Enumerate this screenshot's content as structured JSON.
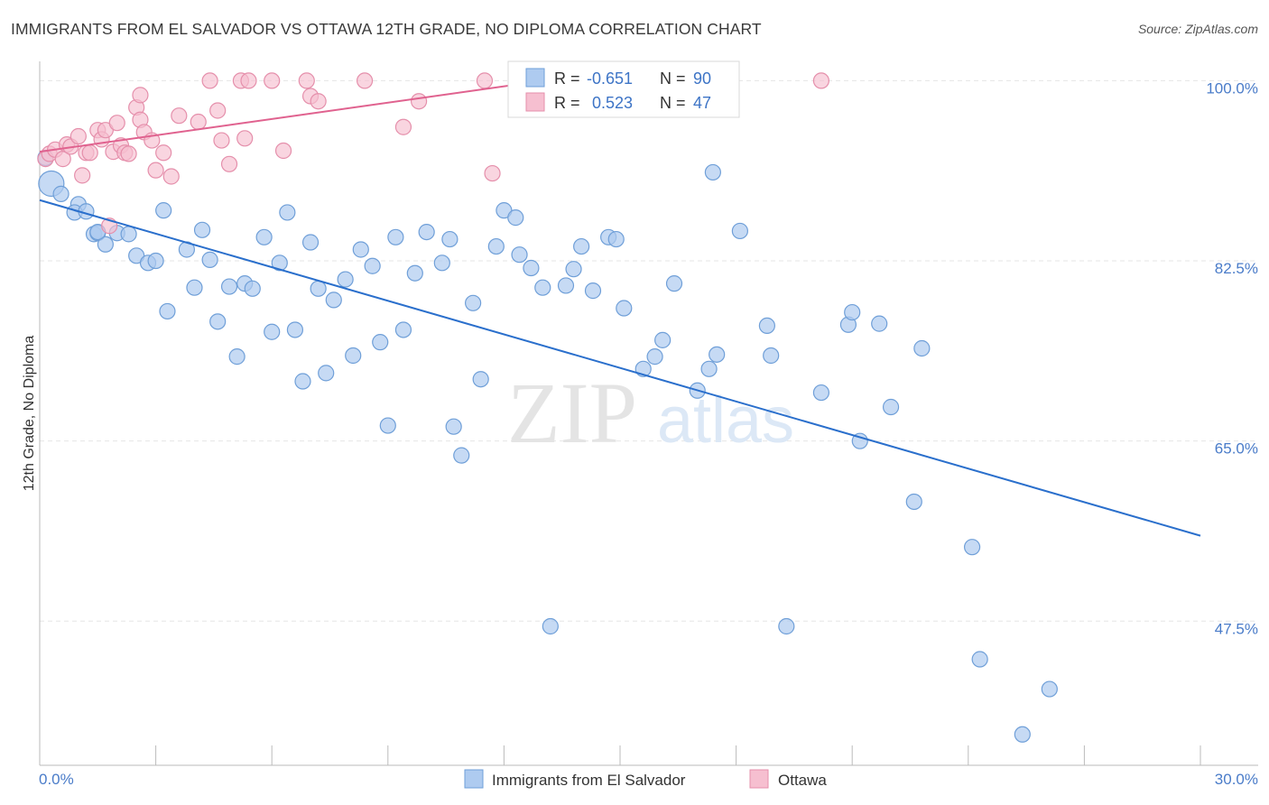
{
  "title": "IMMIGRANTS FROM EL SALVADOR VS OTTAWA 12TH GRADE, NO DIPLOMA CORRELATION CHART",
  "source": "Source: ZipAtlas.com",
  "watermark": {
    "zip": "ZIP",
    "atlas": "atlas"
  },
  "colors": {
    "blue_fill": "#aecbf0",
    "blue_stroke": "#6f9fd8",
    "blue_line": "#2a6fcc",
    "pink_fill": "#f6bfd0",
    "pink_stroke": "#e58fab",
    "pink_line": "#e0628f",
    "tick_text": "#4a7cc9",
    "grid": "#e6e6e6"
  },
  "legend_box": {
    "rows": [
      {
        "series": "blue",
        "r_label": "R =",
        "r_value": "-0.651",
        "n_label": "N =",
        "n_value": "90"
      },
      {
        "series": "pink",
        "r_label": "R =",
        "r_value": "0.523",
        "n_label": "N =",
        "n_value": "47"
      }
    ]
  },
  "bottom_legend": [
    "Immigrants from El Salvador",
    "Ottawa"
  ],
  "chart_data": {
    "type": "scatter",
    "title": "IMMIGRANTS FROM EL SALVADOR VS OTTAWA 12TH GRADE, NO DIPLOMA CORRELATION CHART",
    "xlabel": "",
    "ylabel": "12th Grade, No Diploma",
    "xlim": [
      0,
      30
    ],
    "ylim": [
      33.5,
      101
    ],
    "x_tick_labels": [
      "0.0%",
      "30.0%"
    ],
    "y_ticks": [
      47.5,
      65.0,
      82.5,
      100.0
    ],
    "y_tick_labels": [
      "47.5%",
      "65.0%",
      "82.5%",
      "100.0%"
    ],
    "grid": true,
    "legend_position": "top-center",
    "series": [
      {
        "name": "Immigrants from El Salvador",
        "color": "#aecbf0",
        "r": -0.651,
        "n": 90,
        "trend": {
          "x": [
            0,
            30
          ],
          "y": [
            88.4,
            55.8
          ]
        },
        "points": [
          [
            0.15,
            92.5
          ],
          [
            0.3,
            90.0
          ],
          [
            0.55,
            89.0
          ],
          [
            1.0,
            88.0
          ],
          [
            0.9,
            87.2
          ],
          [
            1.2,
            87.3
          ],
          [
            1.4,
            85.1
          ],
          [
            1.5,
            85.2
          ],
          [
            1.7,
            84.1
          ],
          [
            2.0,
            85.2
          ],
          [
            2.3,
            85.1
          ],
          [
            2.5,
            83.0
          ],
          [
            2.8,
            82.3
          ],
          [
            3.0,
            82.5
          ],
          [
            3.2,
            87.4
          ],
          [
            3.3,
            77.6
          ],
          [
            3.8,
            83.6
          ],
          [
            4.0,
            79.9
          ],
          [
            4.2,
            85.5
          ],
          [
            4.4,
            82.6
          ],
          [
            4.6,
            76.6
          ],
          [
            4.9,
            80.0
          ],
          [
            5.1,
            73.2
          ],
          [
            5.3,
            80.3
          ],
          [
            5.5,
            79.8
          ],
          [
            5.8,
            84.8
          ],
          [
            6.0,
            75.6
          ],
          [
            6.2,
            82.3
          ],
          [
            6.4,
            87.2
          ],
          [
            6.6,
            75.8
          ],
          [
            6.8,
            70.8
          ],
          [
            7.0,
            84.3
          ],
          [
            7.2,
            79.8
          ],
          [
            7.4,
            71.6
          ],
          [
            7.6,
            78.7
          ],
          [
            7.9,
            80.7
          ],
          [
            8.1,
            73.3
          ],
          [
            8.3,
            83.6
          ],
          [
            8.6,
            82.0
          ],
          [
            8.8,
            74.6
          ],
          [
            9.0,
            66.5
          ],
          [
            9.2,
            84.8
          ],
          [
            9.4,
            75.8
          ],
          [
            9.7,
            81.3
          ],
          [
            10.0,
            85.3
          ],
          [
            10.4,
            82.3
          ],
          [
            10.6,
            84.6
          ],
          [
            10.7,
            66.4
          ],
          [
            10.9,
            63.6
          ],
          [
            11.2,
            78.4
          ],
          [
            11.4,
            71.0
          ],
          [
            11.8,
            83.9
          ],
          [
            12.0,
            87.4
          ],
          [
            12.3,
            86.7
          ],
          [
            12.4,
            83.1
          ],
          [
            12.7,
            81.8
          ],
          [
            13.0,
            79.9
          ],
          [
            13.2,
            47.0
          ],
          [
            13.6,
            80.1
          ],
          [
            13.8,
            81.7
          ],
          [
            14.0,
            83.9
          ],
          [
            14.3,
            79.6
          ],
          [
            14.7,
            84.8
          ],
          [
            14.9,
            84.6
          ],
          [
            15.1,
            77.9
          ],
          [
            15.6,
            72.0
          ],
          [
            15.9,
            73.2
          ],
          [
            16.1,
            74.8
          ],
          [
            16.4,
            80.3
          ],
          [
            17.0,
            69.9
          ],
          [
            17.4,
            91.1
          ],
          [
            17.3,
            72.0
          ],
          [
            17.5,
            73.4
          ],
          [
            18.1,
            85.4
          ],
          [
            18.8,
            76.2
          ],
          [
            18.9,
            73.3
          ],
          [
            19.3,
            47.0
          ],
          [
            20.2,
            69.7
          ],
          [
            20.9,
            76.3
          ],
          [
            21.0,
            77.5
          ],
          [
            21.2,
            65.0
          ],
          [
            21.7,
            76.4
          ],
          [
            22.0,
            68.3
          ],
          [
            22.6,
            59.1
          ],
          [
            22.8,
            74.0
          ],
          [
            24.3,
            43.8
          ],
          [
            24.1,
            54.7
          ],
          [
            25.4,
            36.5
          ],
          [
            26.1,
            40.9
          ],
          [
            1.5,
            85.3
          ]
        ]
      },
      {
        "name": "Ottawa",
        "color": "#f6bfd0",
        "r": 0.523,
        "n": 47,
        "trend": {
          "x": [
            0,
            13.6
          ],
          "y": [
            93.1,
            100.3
          ]
        },
        "points": [
          [
            0.15,
            92.4
          ],
          [
            0.25,
            92.9
          ],
          [
            0.4,
            93.3
          ],
          [
            0.6,
            92.4
          ],
          [
            0.7,
            93.8
          ],
          [
            0.8,
            93.6
          ],
          [
            1.0,
            94.6
          ],
          [
            1.1,
            90.8
          ],
          [
            1.2,
            93.0
          ],
          [
            1.3,
            93.0
          ],
          [
            1.5,
            95.2
          ],
          [
            1.6,
            94.3
          ],
          [
            1.7,
            95.2
          ],
          [
            1.8,
            85.9
          ],
          [
            1.9,
            93.1
          ],
          [
            2.0,
            95.9
          ],
          [
            2.1,
            93.7
          ],
          [
            2.2,
            93.0
          ],
          [
            2.3,
            92.9
          ],
          [
            2.5,
            97.4
          ],
          [
            2.6,
            96.2
          ],
          [
            2.6,
            98.6
          ],
          [
            2.7,
            95.0
          ],
          [
            2.9,
            94.2
          ],
          [
            3.0,
            91.3
          ],
          [
            3.2,
            93.0
          ],
          [
            3.4,
            90.7
          ],
          [
            3.6,
            96.6
          ],
          [
            4.1,
            96.0
          ],
          [
            4.4,
            100.0
          ],
          [
            4.6,
            97.1
          ],
          [
            4.7,
            94.2
          ],
          [
            4.9,
            91.9
          ],
          [
            5.2,
            100.0
          ],
          [
            5.3,
            94.4
          ],
          [
            5.4,
            100.0
          ],
          [
            6.0,
            100.0
          ],
          [
            6.3,
            93.2
          ],
          [
            6.9,
            100.0
          ],
          [
            7.0,
            98.5
          ],
          [
            7.2,
            98.0
          ],
          [
            8.4,
            100.0
          ],
          [
            9.4,
            95.5
          ],
          [
            9.8,
            98.0
          ],
          [
            11.5,
            100.0
          ],
          [
            11.7,
            91.0
          ],
          [
            20.2,
            100.0
          ]
        ]
      }
    ]
  }
}
